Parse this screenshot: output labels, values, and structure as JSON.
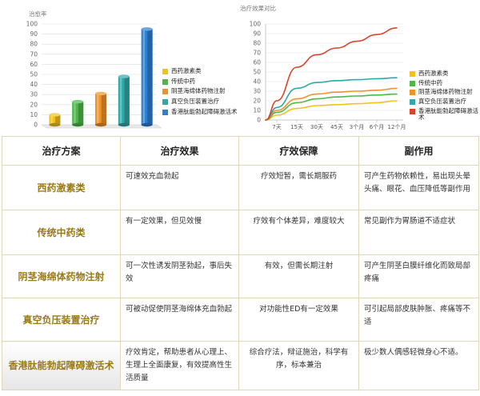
{
  "chart_data": [
    {
      "type": "bar",
      "title": "",
      "ylabel": "治愈率",
      "ylim": [
        0,
        100
      ],
      "yticks": [
        0,
        10,
        20,
        30,
        40,
        50,
        60,
        70,
        80,
        90,
        100
      ],
      "categories": [
        "西药激素类",
        "传统中药",
        "阴茎海绵体药物注射",
        "真空负压装置治疗",
        "香港肽能勃起障碍激活术"
      ],
      "values": [
        10,
        23,
        31,
        48,
        95
      ],
      "colors": [
        "#f2c21b",
        "#4bb848",
        "#f0922a",
        "#2fa8a8",
        "#2b7fd4"
      ],
      "grid": true,
      "legend_position": "right"
    },
    {
      "type": "line",
      "title": "治疗效果对比",
      "ylim": [
        0,
        100
      ],
      "yticks": [
        0,
        10,
        20,
        30,
        40,
        50,
        60,
        70,
        80,
        90,
        100
      ],
      "x": [
        "7天",
        "15天",
        "30天",
        "45天",
        "3个月",
        "6个月",
        "12个月"
      ],
      "series": [
        {
          "name": "西药激素类",
          "color": "#f2c21b",
          "values": [
            5,
            12,
            15,
            16,
            17,
            18,
            20
          ]
        },
        {
          "name": "传统中药",
          "color": "#4bb848",
          "values": [
            8,
            18,
            22,
            24,
            25,
            26,
            27
          ]
        },
        {
          "name": "阴茎海绵体药物注射",
          "color": "#f0922a",
          "values": [
            10,
            22,
            27,
            29,
            30,
            31,
            33
          ]
        },
        {
          "name": "真空负压装置治疗",
          "color": "#2fa8a8",
          "values": [
            13,
            33,
            39,
            41,
            42,
            43,
            44
          ]
        },
        {
          "name": "香港肽能勃起障碍激活术",
          "color": "#d9452b",
          "values": [
            20,
            55,
            68,
            75,
            82,
            89,
            96
          ]
        }
      ],
      "grid": true,
      "legend_position": "right"
    }
  ],
  "table": {
    "headers": [
      "治疗方案",
      "治疗效果",
      "疗效保障",
      "副作用"
    ],
    "rows": [
      {
        "name": "西药激素类",
        "effect": "可速效充血勃起",
        "guarantee": "疗效短暂，需长期服药",
        "side": "可产生药物依赖性，易出现头晕头痛、眼花、血压降低等副作用"
      },
      {
        "name": "传统中药类",
        "effect": "有一定效果，但见效慢",
        "guarantee": "疗效有个体差异，难度较大",
        "side": "常见副作为胃肠道不适症状"
      },
      {
        "name": "阴茎海绵体药物注射",
        "effect": "可一次性诱发阴茎勃起，事后失效",
        "guarantee": "有效，但需长期注射",
        "side": "可产生阴茎白膜纤维化而致局部疼痛"
      },
      {
        "name": "真空负压装置治疗",
        "effect": "可被动促使阴茎海绵体充血勃起",
        "guarantee": "对功能性ED有一定效果",
        "side": "可引起局部皮肤肿胀、疼痛等不适"
      },
      {
        "name": "香港肽能勃起障碍激活术",
        "effect": "疗效肯定，帮助患者从心理上、生理上全面康复，有效提高性生活质量",
        "guarantee": "综合疗法，辩证施治，科学有序，标本兼治",
        "side": "极少数人偶感轻微身心不适。"
      }
    ]
  }
}
